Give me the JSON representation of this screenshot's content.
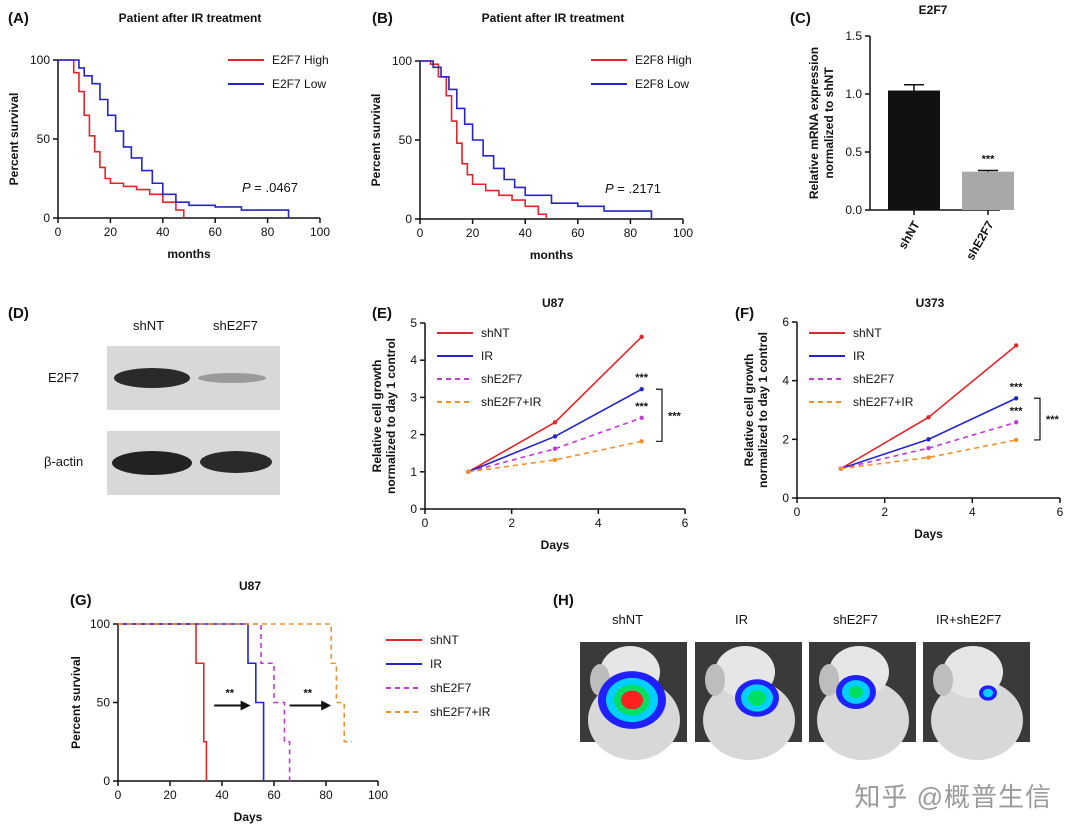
{
  "figure": {
    "watermark": "知乎 @概普生信",
    "panels": {
      "A": {
        "label": "(A)",
        "title": "Patient after IR treatment",
        "xlabel": "months",
        "ylabel": "Percent survival",
        "legend": [
          "E2F7 High",
          "E2F7 Low"
        ],
        "p_prefix": "P",
        "p_value": " = .0467",
        "xticks": [
          "0",
          "20",
          "40",
          "60",
          "80",
          "100"
        ],
        "yticks": [
          "0",
          "50",
          "100"
        ]
      },
      "B": {
        "label": "(B)",
        "title": "Patient after IR treatment",
        "xlabel": "months",
        "ylabel": "Percent survival",
        "legend": [
          "E2F8 High",
          "E2F8 Low"
        ],
        "p_prefix": "P",
        "p_value": " = .2171",
        "xticks": [
          "0",
          "20",
          "40",
          "60",
          "80",
          "100"
        ],
        "yticks": [
          "0",
          "50",
          "100"
        ]
      },
      "C": {
        "label": "(C)",
        "title": "E2F7",
        "ylabel": "Relative mRNA expression normalized to shNT",
        "ylabel_line1": "Relative mRNA expression",
        "ylabel_line2": "normalized to shNT",
        "categories": [
          "shNT",
          "shE2F7"
        ],
        "yticks": [
          "0.0",
          "0.5",
          "1.0",
          "1.5"
        ],
        "sig": "***"
      },
      "D": {
        "label": "(D)",
        "cols": [
          "shNT",
          "shE2F7"
        ],
        "rows": [
          "E2F7",
          "β-actin"
        ]
      },
      "E": {
        "label": "(E)",
        "title": "U87",
        "xlabel": "Days",
        "ylabel_line1": "Relative cell growth",
        "ylabel_line2": "normalized to day 1 control",
        "legend": [
          "shNT",
          "IR",
          "shE2F7",
          "shE2F7+IR"
        ],
        "xticks": [
          "0",
          "2",
          "4",
          "6"
        ],
        "yticks": [
          "0",
          "1",
          "2",
          "3",
          "4",
          "5"
        ],
        "sig": "***"
      },
      "F": {
        "label": "(F)",
        "title": "U373",
        "xlabel": "Days",
        "ylabel_line1": "Relative cell growth",
        "ylabel_line2": "normalized to day 1 control",
        "legend": [
          "shNT",
          "IR",
          "shE2F7",
          "shE2F7+IR"
        ],
        "xticks": [
          "0",
          "2",
          "4",
          "6"
        ],
        "yticks": [
          "0",
          "2",
          "4",
          "6"
        ],
        "sig": "***"
      },
      "G": {
        "label": "(G)",
        "title": "U87",
        "xlabel": "Days",
        "ylabel": "Percent survival",
        "legend": [
          "shNT",
          "IR",
          "shE2F7",
          "shE2F7+IR"
        ],
        "xticks": [
          "0",
          "20",
          "40",
          "60",
          "80",
          "100"
        ],
        "yticks": [
          "0",
          "50",
          "100"
        ],
        "sig": "**"
      },
      "H": {
        "label": "(H)",
        "cols": [
          "shNT",
          "IR",
          "shE2F7",
          "IR+shE2F7"
        ]
      }
    },
    "colors": {
      "red": "#e0262a",
      "blue": "#2424c8",
      "magenta": "#c23ad6",
      "orange": "#f0922a",
      "black": "#111111",
      "gray": "#a8a8a8"
    }
  },
  "chart_data": [
    {
      "id": "A",
      "type": "line",
      "title": "Patient after IR treatment",
      "xlabel": "months",
      "ylabel": "Percent survival",
      "xlim": [
        0,
        100
      ],
      "ylim": [
        0,
        100
      ],
      "series": [
        {
          "name": "E2F7 High",
          "x": [
            0,
            4,
            6,
            8,
            10,
            12,
            14,
            16,
            18,
            20,
            25,
            30,
            35,
            40,
            45,
            48
          ],
          "y": [
            100,
            100,
            92,
            80,
            65,
            52,
            42,
            32,
            25,
            22,
            20,
            18,
            15,
            10,
            5,
            0
          ]
        },
        {
          "name": "E2F7 Low",
          "x": [
            0,
            5,
            8,
            10,
            13,
            16,
            19,
            22,
            25,
            28,
            32,
            36,
            40,
            45,
            50,
            60,
            70,
            88
          ],
          "y": [
            100,
            100,
            95,
            90,
            85,
            75,
            65,
            55,
            45,
            38,
            30,
            22,
            15,
            10,
            8,
            7,
            5,
            0
          ]
        }
      ]
    },
    {
      "id": "B",
      "type": "line",
      "title": "Patient after IR treatment",
      "xlabel": "months",
      "ylabel": "Percent survival",
      "xlim": [
        0,
        100
      ],
      "ylim": [
        0,
        100
      ],
      "series": [
        {
          "name": "E2F8 High",
          "x": [
            0,
            4,
            7,
            10,
            12,
            14,
            16,
            18,
            20,
            25,
            30,
            35,
            40,
            45,
            48
          ],
          "y": [
            100,
            98,
            90,
            78,
            62,
            48,
            35,
            28,
            22,
            18,
            15,
            12,
            8,
            3,
            0
          ]
        },
        {
          "name": "E2F8 Low",
          "x": [
            0,
            5,
            8,
            11,
            14,
            17,
            20,
            24,
            28,
            32,
            36,
            40,
            50,
            60,
            70,
            88
          ],
          "y": [
            100,
            96,
            90,
            82,
            70,
            60,
            50,
            40,
            32,
            25,
            20,
            15,
            10,
            8,
            5,
            0
          ]
        }
      ]
    },
    {
      "id": "C",
      "type": "bar",
      "title": "E2F7",
      "ylabel": "Relative mRNA expression normalized to shNT",
      "categories": [
        "shNT",
        "shE2F7"
      ],
      "values": [
        1.03,
        0.33
      ],
      "errors": [
        0.05,
        0.01
      ],
      "ylim": [
        0,
        1.5
      ]
    },
    {
      "id": "E",
      "type": "line",
      "title": "U87",
      "xlabel": "Days",
      "ylabel": "Relative cell growth normalized to day 1 control",
      "xlim": [
        0,
        6
      ],
      "ylim": [
        0,
        5
      ],
      "x": [
        1,
        3,
        5
      ],
      "series": [
        {
          "name": "shNT",
          "values": [
            1.0,
            2.33,
            4.63
          ]
        },
        {
          "name": "IR",
          "values": [
            1.0,
            1.95,
            3.22
          ]
        },
        {
          "name": "shE2F7",
          "values": [
            1.0,
            1.62,
            2.45
          ]
        },
        {
          "name": "shE2F7+IR",
          "values": [
            1.0,
            1.32,
            1.82
          ]
        }
      ]
    },
    {
      "id": "F",
      "type": "line",
      "title": "U373",
      "xlabel": "Days",
      "ylabel": "Relative cell growth normalized to day 1 control",
      "xlim": [
        0,
        6
      ],
      "ylim": [
        0,
        6
      ],
      "x": [
        1,
        3,
        5
      ],
      "series": [
        {
          "name": "shNT",
          "values": [
            1.0,
            2.75,
            5.2
          ]
        },
        {
          "name": "IR",
          "values": [
            1.0,
            2.0,
            3.4
          ]
        },
        {
          "name": "shE2F7",
          "values": [
            1.0,
            1.7,
            2.58
          ]
        },
        {
          "name": "shE2F7+IR",
          "values": [
            1.0,
            1.38,
            1.98
          ]
        }
      ]
    },
    {
      "id": "G",
      "type": "line",
      "title": "U87",
      "xlabel": "Days",
      "ylabel": "Percent survival",
      "xlim": [
        0,
        100
      ],
      "ylim": [
        0,
        100
      ],
      "series": [
        {
          "name": "shNT",
          "x": [
            0,
            30,
            30,
            33,
            33,
            34,
            34
          ],
          "y": [
            100,
            100,
            75,
            75,
            25,
            25,
            0
          ]
        },
        {
          "name": "IR",
          "x": [
            0,
            50,
            50,
            53,
            53,
            56,
            56
          ],
          "y": [
            100,
            100,
            75,
            75,
            50,
            50,
            0
          ]
        },
        {
          "name": "shE2F7",
          "x": [
            0,
            55,
            55,
            60,
            60,
            64,
            64,
            66,
            66
          ],
          "y": [
            100,
            100,
            75,
            75,
            50,
            50,
            25,
            25,
            0
          ]
        },
        {
          "name": "shE2F7+IR",
          "x": [
            0,
            82,
            82,
            84,
            84,
            87,
            87,
            90
          ],
          "y": [
            100,
            100,
            75,
            75,
            50,
            50,
            25,
            25
          ]
        }
      ]
    }
  ]
}
